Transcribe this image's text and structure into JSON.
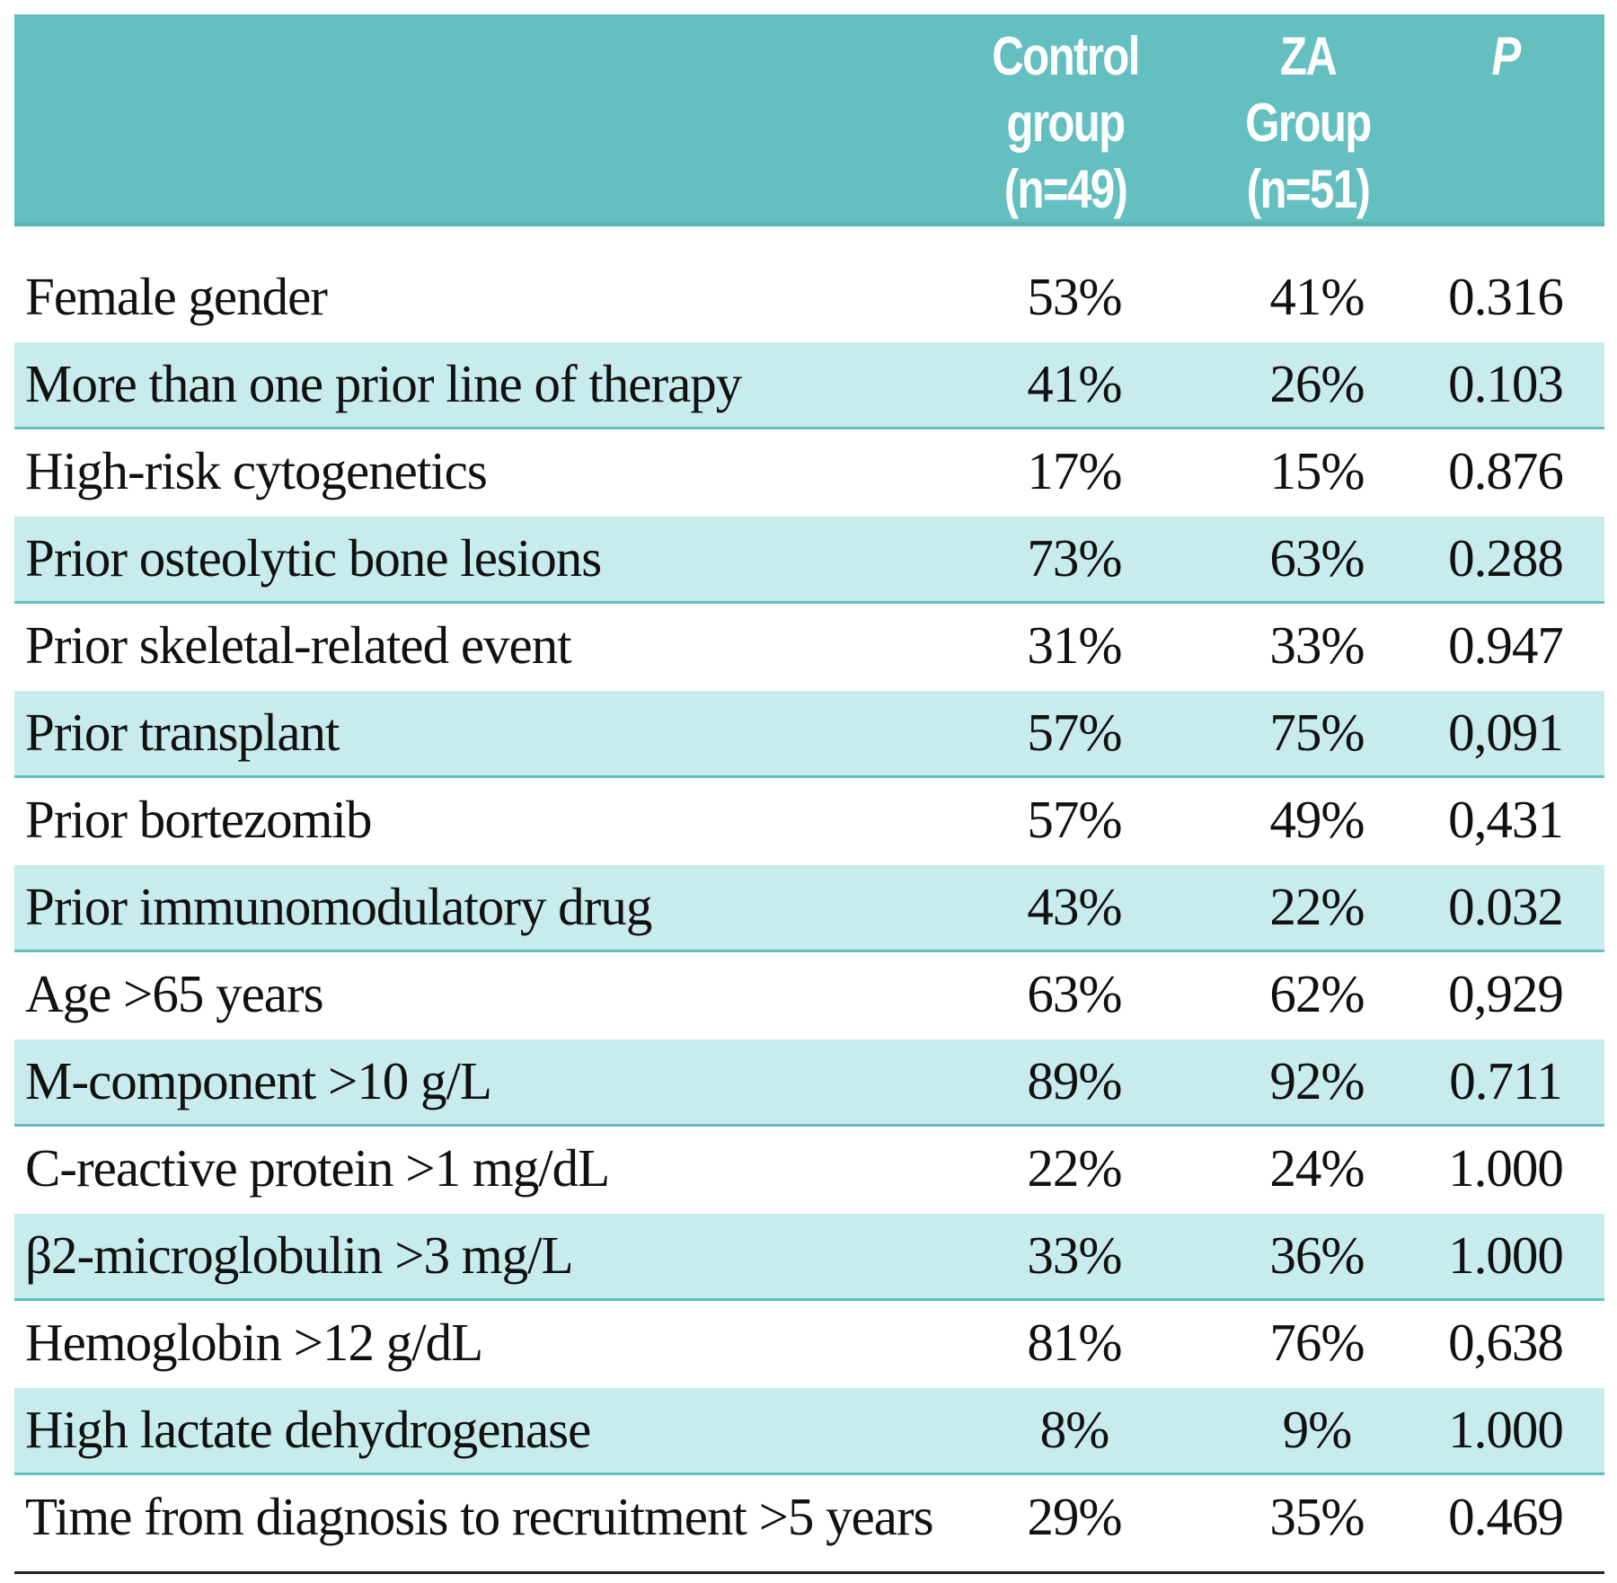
{
  "table": {
    "columns": {
      "control": [
        "Control",
        "group",
        "(n=49)"
      ],
      "za": [
        "ZA",
        "Group",
        "(n=51)"
      ],
      "p": "P"
    },
    "rows": [
      {
        "label": "Female gender",
        "control": "53%",
        "za": "41%",
        "p": "0.316"
      },
      {
        "label": "More than one prior line of therapy",
        "control": "41%",
        "za": "26%",
        "p": "0.103"
      },
      {
        "label": "High-risk cytogenetics",
        "control": "17%",
        "za": "15%",
        "p": "0.876"
      },
      {
        "label": "Prior osteolytic bone lesions",
        "control": "73%",
        "za": "63%",
        "p": "0.288"
      },
      {
        "label": "Prior skeletal-related event",
        "control": "31%",
        "za": "33%",
        "p": "0.947"
      },
      {
        "label": "Prior transplant",
        "control": "57%",
        "za": "75%",
        "p": "0,091"
      },
      {
        "label": "Prior bortezomib",
        "control": "57%",
        "za": "49%",
        "p": "0,431"
      },
      {
        "label": "Prior immunomodulatory drug",
        "control": "43%",
        "za": "22%",
        "p": "0.032"
      },
      {
        "label": "Age >65 years",
        "control": "63%",
        "za": "62%",
        "p": "0,929"
      },
      {
        "label": "M-component >10 g/L",
        "control": "89%",
        "za": "92%",
        "p": "0.711"
      },
      {
        "label": "C-reactive protein >1 mg/dL",
        "control": "22%",
        "za": "24%",
        "p": "1.000"
      },
      {
        "label": "β2-microglobulin >3 mg/L",
        "control": "33%",
        "za": "36%",
        "p": "1.000"
      },
      {
        "label": "Hemoglobin >12 g/dL",
        "control": "81%",
        "za": "76%",
        "p": "0,638"
      },
      {
        "label": "High lactate dehydrogenase",
        "control": "8%",
        "za": "9%",
        "p": "1.000"
      },
      {
        "label": "Time from diagnosis to recruitment >5 years",
        "control": "29%",
        "za": "35%",
        "p": "0.469"
      }
    ]
  },
  "colors": {
    "header_bg": "#63bfc0",
    "shaded_row_bg": "#c8ebec",
    "header_text": "#ffffff"
  }
}
